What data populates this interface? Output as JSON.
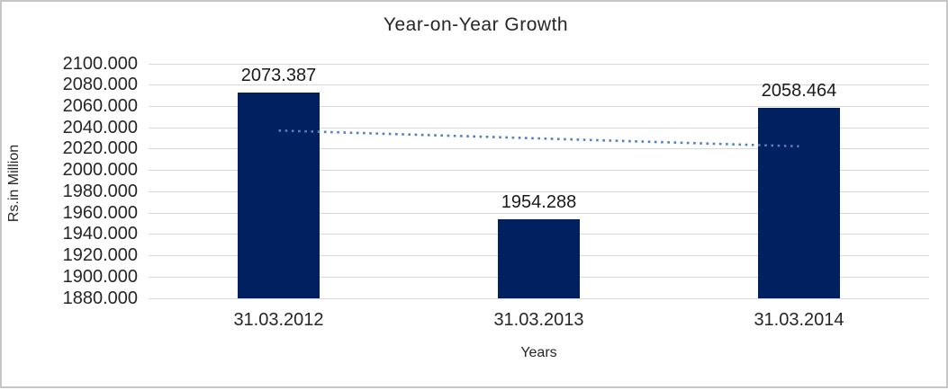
{
  "window": {
    "background": "#ffffff",
    "border_color": "#c6c6c6"
  },
  "chart_data": {
    "type": "bar",
    "title": "Year-on-Year Growth",
    "xlabel": "Years",
    "ylabel": "Rs.in Million",
    "categories": [
      "31.03.2012",
      "31.03.2013",
      "31.03.2014"
    ],
    "values": [
      2073.387,
      1954.288,
      2058.464
    ],
    "data_labels": [
      "2073.387",
      "1954.288",
      "2058.464"
    ],
    "ylim": [
      1880,
      2100
    ],
    "ytick_step": 20,
    "yticks": [
      "2100.000",
      "2080.000",
      "2060.000",
      "2040.000",
      "2020.000",
      "2000.000",
      "1980.000",
      "1960.000",
      "1940.000",
      "1920.000",
      "1900.000",
      "1880.000"
    ],
    "grid": true,
    "legend": "none",
    "bar_color": "#002060",
    "gridline_color": "#d9d9d9",
    "text_color": "#262626",
    "trendline": {
      "type": "linear",
      "style": "dotted",
      "color": "#4f81bd",
      "start_value": 2037.4,
      "end_value": 2022.6
    }
  }
}
